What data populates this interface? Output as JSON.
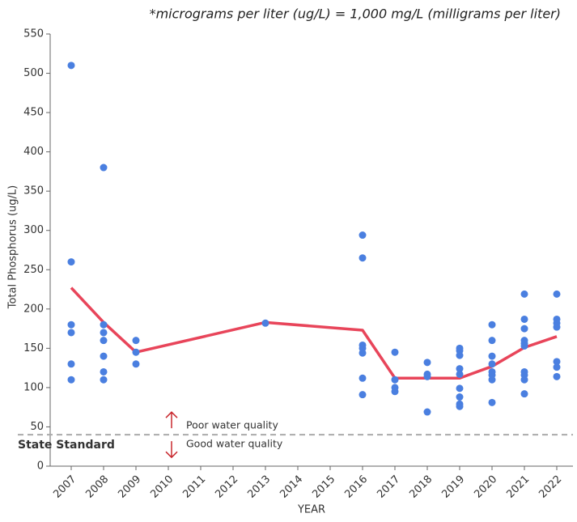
{
  "chart_data": {
    "type": "scatter",
    "note": "*micrograms per liter (ug/L) = 1,000 mg/L (milligrams per liter)",
    "x_label": "YEAR",
    "y_label": "Total Phosphorus (ug/L)",
    "xlim": [
      2006.35,
      2022.5
    ],
    "xticks": [
      2007,
      2008,
      2009,
      2010,
      2011,
      2012,
      2013,
      2014,
      2015,
      2016,
      2017,
      2018,
      2019,
      2020,
      2021,
      2022
    ],
    "ylim": [
      0,
      550
    ],
    "yticks": [
      0,
      50,
      100,
      150,
      200,
      250,
      300,
      350,
      400,
      450,
      500,
      550
    ],
    "points": {
      "color": "#4a7fe0",
      "x": [
        2007,
        2007,
        2007,
        2007,
        2007,
        2007,
        2008,
        2008,
        2008,
        2008,
        2008,
        2008,
        2008,
        2009,
        2009,
        2009,
        2013,
        2016,
        2016,
        2016,
        2016,
        2016,
        2016,
        2016,
        2017,
        2017,
        2017,
        2017,
        2018,
        2018,
        2018,
        2018,
        2019,
        2019,
        2019,
        2019,
        2019,
        2019,
        2019,
        2019,
        2019,
        2020,
        2020,
        2020,
        2020,
        2020,
        2020,
        2020,
        2020,
        2021,
        2021,
        2021,
        2021,
        2021,
        2021,
        2021,
        2021,
        2021,
        2021,
        2022,
        2022,
        2022,
        2022,
        2022,
        2022,
        2022
      ],
      "y": [
        510,
        260,
        180,
        170,
        130,
        110,
        380,
        180,
        170,
        160,
        140,
        120,
        110,
        160,
        145,
        130,
        182,
        294,
        265,
        154,
        150,
        144,
        112,
        91,
        145,
        110,
        100,
        95,
        132,
        117,
        114,
        69,
        150,
        147,
        141,
        124,
        117,
        99,
        88,
        79,
        76,
        180,
        160,
        140,
        130,
        120,
        116,
        110,
        81,
        219,
        187,
        175,
        160,
        156,
        153,
        120,
        116,
        110,
        92,
        219,
        187,
        182,
        177,
        133,
        126,
        114
      ]
    },
    "mean_line": {
      "color": "#e8455a",
      "x": [
        2007,
        2008,
        2009,
        2013,
        2016,
        2017,
        2018,
        2019,
        2020,
        2021,
        2022
      ],
      "y": [
        227,
        183,
        145,
        183,
        173,
        112,
        112,
        112,
        127,
        151,
        165
      ]
    },
    "standard": {
      "value": 40,
      "label": "State Standard",
      "above": "Poor water quality",
      "below": "Good water quality"
    }
  }
}
